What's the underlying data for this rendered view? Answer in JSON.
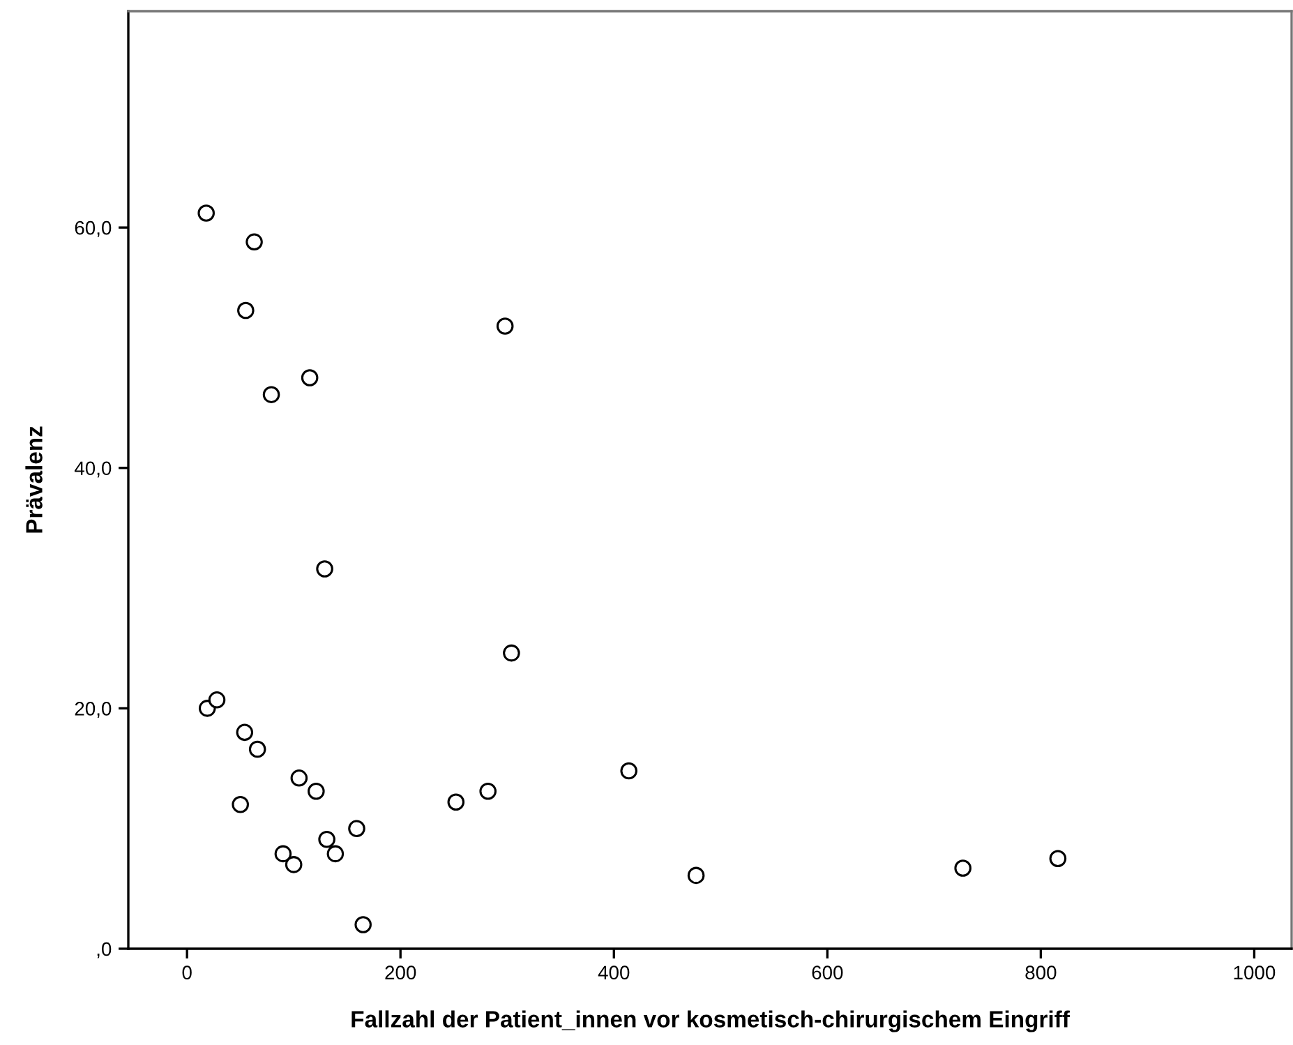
{
  "chart_data": {
    "type": "scatter",
    "xlabel": "Fallzahl der Patient_innen vor kosmetisch-chirurgischem Eingriff",
    "ylabel": "Prävalenz",
    "x": [
      18,
      63,
      55,
      298,
      115,
      79,
      129,
      304,
      19,
      28,
      54,
      66,
      105,
      121,
      50,
      252,
      282,
      159,
      131,
      139,
      90,
      100,
      165,
      414,
      477,
      727,
      816
    ],
    "values": [
      61.2,
      58.8,
      53.1,
      51.8,
      47.5,
      46.1,
      31.6,
      24.6,
      20.0,
      20.7,
      18.0,
      16.6,
      14.2,
      13.1,
      12.0,
      12.2,
      13.1,
      10.0,
      9.1,
      7.9,
      7.9,
      7.0,
      2.0,
      14.8,
      6.1,
      6.7,
      7.5
    ],
    "color": "#000000",
    "marker": "circle",
    "grid": false,
    "legend": false,
    "xlim": [
      -55,
      1035
    ],
    "ylim": [
      0,
      78
    ],
    "xticks": [
      0,
      200,
      400,
      600,
      800,
      1000
    ],
    "yticks": [
      {
        "value": 0,
        "label": ",0"
      },
      {
        "value": 20,
        "label": "20,0"
      },
      {
        "value": 40,
        "label": "40,0"
      },
      {
        "value": 60,
        "label": "60,0"
      }
    ]
  }
}
